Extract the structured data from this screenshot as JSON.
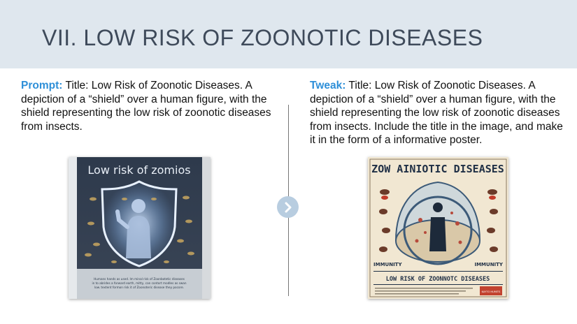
{
  "slide": {
    "title": "VII. LOW RISK OF ZOONOTIC DISEASES"
  },
  "prompt": {
    "label": "Prompt:",
    "text": " Title: Low Risk of Zoonotic Diseases. A depiction of a “shield” over a human figure, with the shield representing the low risk of zoonotic diseases from insects."
  },
  "tweak": {
    "label": "Tweak:",
    "text": " Title: Low Risk of Zoonotic Diseases. A depiction of a “shield” over a human figure, with the shield representing the low risk of zoonotic diseases from insects. Include the title in the image, and make it in the form of a informative poster."
  },
  "image_left": {
    "title": "Low risk of zomios",
    "caption_line1": "Humans hands as used. Im minal risk of Zoonbotetic diseases",
    "caption_line2": "in to abrides a forward earth, mitty, can contort modles as swan",
    "caption_line3": "low. textent formon risk it of Zoonoteric disease they pocore."
  },
  "image_right": {
    "title": "ZOW AINIOTIC DISEASES",
    "label_left": "IMMUNITY",
    "label_right": "IMMUNITY",
    "subtitle": "LOW RISK OF ZOONNOTC DISEASES",
    "stamp": "KAYTO HUMITS"
  },
  "colors": {
    "header_bg": "#dfe7ee",
    "title_text": "#3e4a5a",
    "accent_blue": "#2e8fd8",
    "arrow_bg": "#b8cde0"
  },
  "icons": {
    "arrow": "chevron-right-icon"
  }
}
